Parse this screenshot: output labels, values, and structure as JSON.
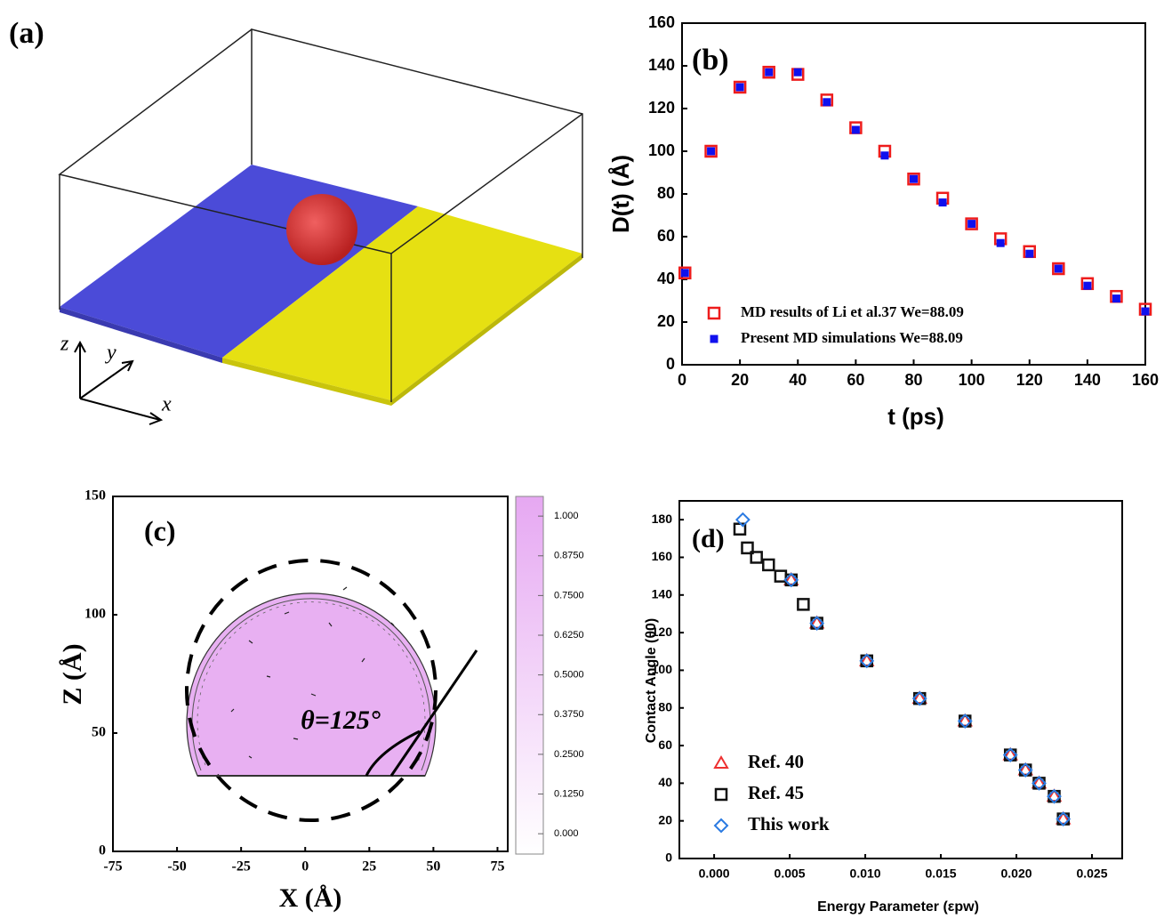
{
  "panel_a": {
    "label": "(a)",
    "axis_labels": {
      "z": "z",
      "y": "y",
      "x": "x"
    }
  },
  "chart_data": [
    {
      "type": "scatter",
      "panel_label": "(b)",
      "x_label": "t (ps)",
      "y_label": "D(t) (Å)",
      "xlim": [
        0,
        160
      ],
      "ylim": [
        0,
        160
      ],
      "xticks": [
        0,
        20,
        40,
        60,
        80,
        100,
        120,
        140,
        160
      ],
      "yticks": [
        0,
        20,
        40,
        60,
        80,
        100,
        120,
        140,
        160
      ],
      "legend": "lower left",
      "series": [
        {
          "name": "MD results of Li et al.37  We=88.09",
          "color": "#ee1c1c",
          "marker": "open-square",
          "x": [
            1,
            10,
            20,
            30,
            40,
            50,
            60,
            70,
            80,
            90,
            100,
            110,
            120,
            130,
            140,
            150,
            160
          ],
          "values": [
            43,
            100,
            130,
            137,
            136,
            124,
            111,
            100,
            87,
            78,
            66,
            59,
            53,
            45,
            38,
            32,
            26
          ]
        },
        {
          "name": "Present MD simulations  We=88.09",
          "color": "#1010ee",
          "marker": "filled-square",
          "x": [
            1,
            10,
            20,
            30,
            40,
            50,
            60,
            70,
            80,
            90,
            100,
            110,
            120,
            130,
            140,
            150,
            160
          ],
          "values": [
            43,
            100,
            130,
            137,
            137,
            123,
            110,
            98,
            87,
            76,
            66,
            57,
            52,
            45,
            37,
            31,
            25
          ]
        }
      ]
    },
    {
      "type": "contour",
      "panel_label": "(c)",
      "x_label": "X (Å)",
      "y_label": "Z (Å)",
      "annotation": "θ=125°",
      "xlim": [
        -75,
        79
      ],
      "ylim": [
        0,
        150
      ],
      "xticks": [
        -75,
        -50,
        -25,
        0,
        25,
        50,
        75
      ],
      "yticks": [
        0,
        50,
        100,
        150
      ],
      "color": "#e6a8f2",
      "clim": [
        -0.064,
        1.062
      ],
      "cticks": [
        {
          "value": 0,
          "label": "0.000"
        },
        {
          "value": 0.125,
          "label": "0.1250"
        },
        {
          "value": 0.25,
          "label": "0.2500"
        },
        {
          "value": 0.375,
          "label": "0.3750"
        },
        {
          "value": 0.5,
          "label": "0.5000"
        },
        {
          "value": 0.625,
          "label": "0.6250"
        },
        {
          "value": 0.75,
          "label": "0.7500"
        },
        {
          "value": 0.875,
          "label": "0.8750"
        },
        {
          "value": 1,
          "label": "1.000"
        }
      ]
    },
    {
      "type": "scatter",
      "panel_label": "(d)",
      "x_label": "Energy Parameter  (εpw)",
      "y_label": "Contact Angle (θ0)",
      "xlim": [
        -0.0023,
        0.027
      ],
      "ylim": [
        0,
        190
      ],
      "xticks": [
        {
          "value": 0,
          "label": "0.000"
        },
        0.005,
        {
          "value": 0.01,
          "label": "0.010"
        },
        0.015,
        {
          "value": 0.02,
          "label": "0.020"
        },
        0.025
      ],
      "yticks": [
        0,
        20,
        40,
        60,
        80,
        100,
        120,
        140,
        160,
        180
      ],
      "legend": "lower left",
      "series": [
        {
          "name": "Ref. 40",
          "color": "#ee3030",
          "marker": "triangle",
          "x": [
            0.0051,
            0.0068,
            0.0101,
            0.0136,
            0.0166,
            0.0196,
            0.0206,
            0.0215,
            0.0225,
            0.0231
          ],
          "values": [
            148,
            125,
            105,
            85,
            73,
            55,
            47,
            40,
            33,
            21
          ]
        },
        {
          "name": "Ref. 45",
          "color": "#111111",
          "marker": "open-square",
          "x": [
            0.0017,
            0.0022,
            0.0028,
            0.0036,
            0.0044,
            0.0051,
            0.0059,
            0.0068,
            0.0101,
            0.0136,
            0.0166,
            0.0196,
            0.0206,
            0.0215,
            0.0225,
            0.0231
          ],
          "values": [
            175,
            165,
            160,
            156,
            150,
            148,
            135,
            125,
            105,
            85,
            73,
            55,
            47,
            40,
            33,
            21
          ]
        },
        {
          "name": "This work",
          "color": "#2a7ae2",
          "marker": "diamond",
          "x": [
            0.0019,
            0.0051,
            0.0068,
            0.0101,
            0.0136,
            0.0166,
            0.0196,
            0.0206,
            0.0215,
            0.0225,
            0.0231
          ],
          "values": [
            180,
            148,
            125,
            105,
            85,
            73,
            55,
            47,
            40,
            33,
            21
          ]
        }
      ]
    }
  ]
}
